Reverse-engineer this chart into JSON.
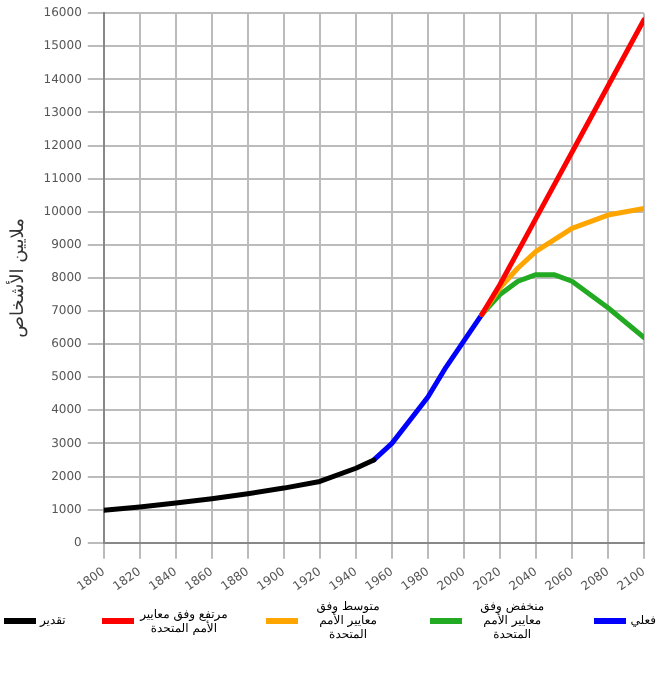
{
  "chart_data": {
    "type": "line",
    "ylabel": "ملايين الأشخاص",
    "xlim": [
      1800,
      2100
    ],
    "xticks": [
      1800,
      1820,
      1840,
      1860,
      1880,
      1900,
      1920,
      1940,
      1960,
      1980,
      2000,
      2020,
      2040,
      2060,
      2080,
      2100
    ],
    "ylim": [
      0,
      16000
    ],
    "yticks": [
      0,
      1000,
      2000,
      3000,
      4000,
      5000,
      6000,
      7000,
      8000,
      9000,
      10000,
      11000,
      12000,
      13000,
      14000,
      15000,
      16000
    ],
    "grid": true,
    "legend": "bottom",
    "marker": "none",
    "line_style": "solid",
    "series": [
      {
        "name": "تقدير",
        "color": "#000000",
        "x": [
          1800,
          1820,
          1840,
          1860,
          1880,
          1900,
          1920,
          1940,
          1950
        ],
        "values": [
          980,
          1080,
          1200,
          1330,
          1480,
          1650,
          1850,
          2250,
          2500
        ]
      },
      {
        "name": "مرتفع وفق معايير الأمم المتحدة",
        "color": "#ff0000",
        "x": [
          2010,
          2020,
          2040,
          2060,
          2080,
          2100
        ],
        "values": [
          6900,
          7800,
          9800,
          11800,
          13800,
          15800
        ]
      },
      {
        "name": "متوسط وفق معايير الأمم المتحدة",
        "color": "#ffa500",
        "x": [
          2010,
          2020,
          2030,
          2040,
          2060,
          2080,
          2100
        ],
        "values": [
          6900,
          7700,
          8300,
          8800,
          9500,
          9900,
          10100
        ]
      },
      {
        "name": "منخفض وفق معايير الأمم المتحدة",
        "color": "#22aa22",
        "x": [
          2010,
          2020,
          2030,
          2040,
          2050,
          2060,
          2080,
          2100
        ],
        "values": [
          6900,
          7500,
          7900,
          8100,
          8100,
          7900,
          7100,
          6200
        ]
      },
      {
        "name": "فعلي",
        "color": "#0000ff",
        "x": [
          1950,
          1960,
          1970,
          1980,
          1990,
          2000,
          2010
        ],
        "values": [
          2500,
          3000,
          3700,
          4400,
          5300,
          6100,
          6900
        ]
      }
    ]
  }
}
